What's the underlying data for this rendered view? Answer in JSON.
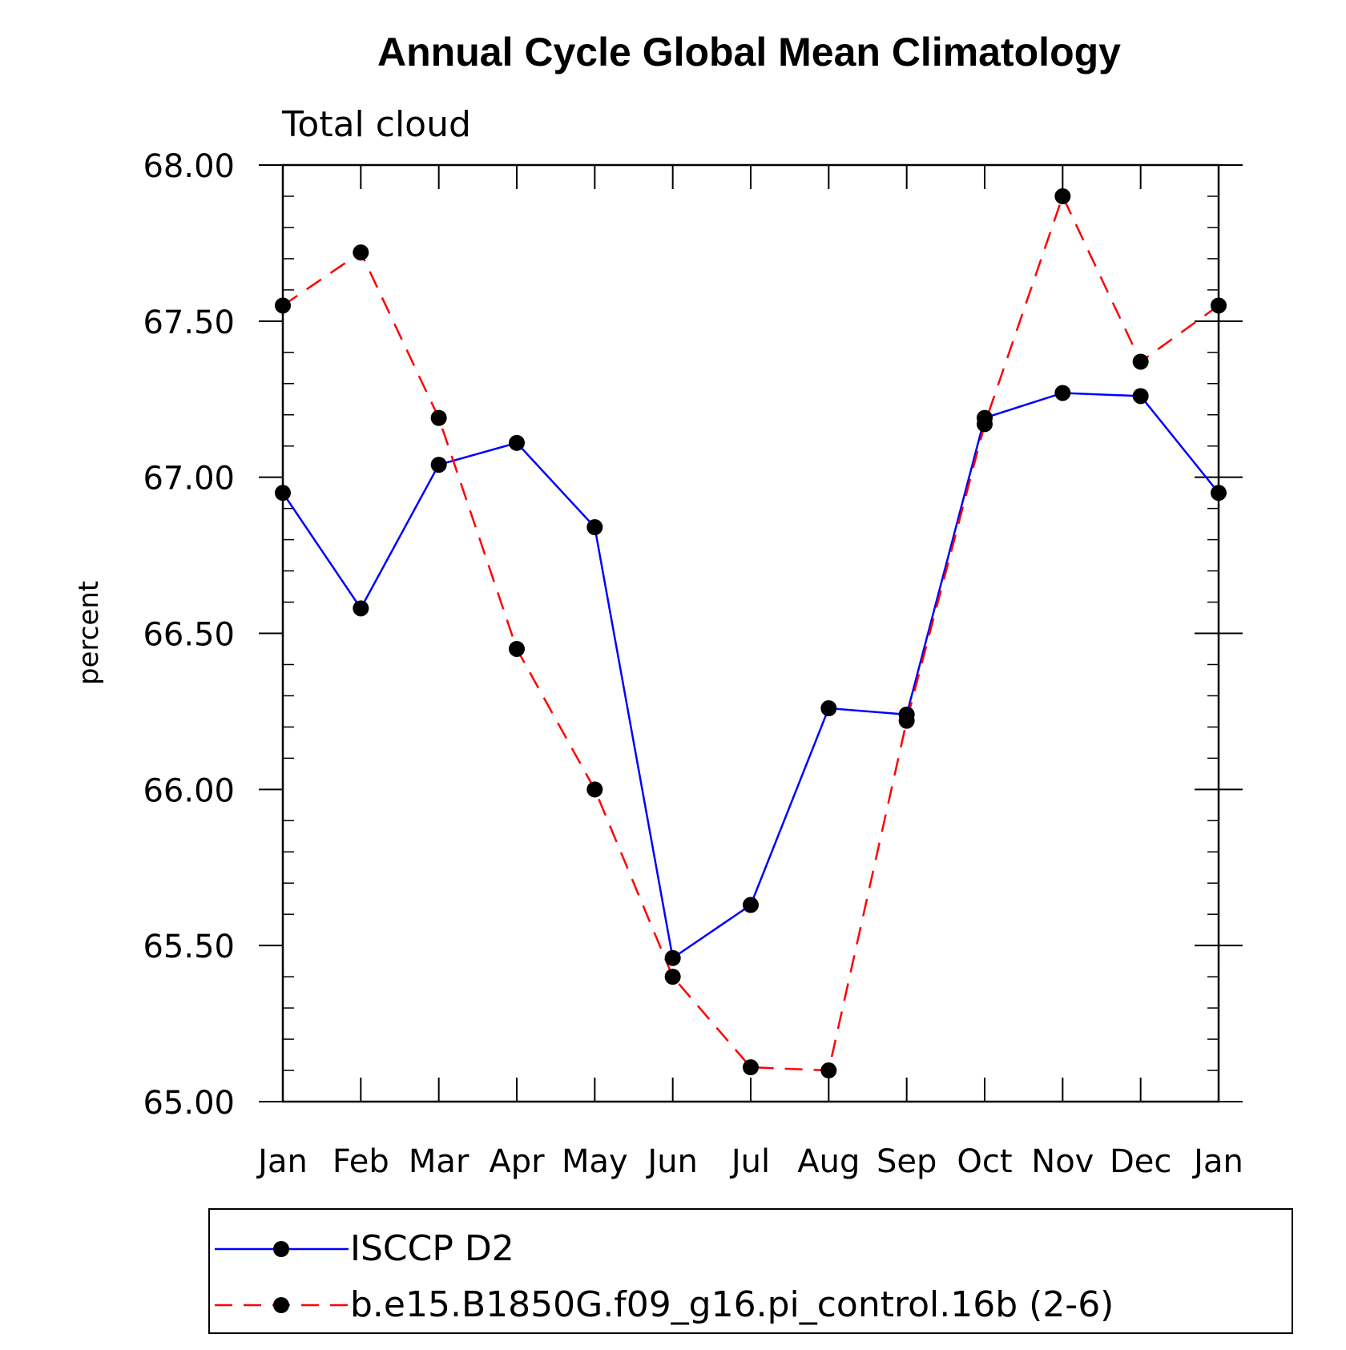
{
  "chart_data": {
    "type": "line",
    "title": "Annual Cycle Global Mean Climatology",
    "subtitle": "Total cloud",
    "xlabel": "",
    "ylabel": "percent",
    "categories": [
      "Jan",
      "Feb",
      "Mar",
      "Apr",
      "May",
      "Jun",
      "Jul",
      "Aug",
      "Sep",
      "Oct",
      "Nov",
      "Dec",
      "Jan"
    ],
    "ylim": [
      65.0,
      68.0
    ],
    "yticks": [
      "65.00",
      "65.50",
      "66.00",
      "66.50",
      "67.00",
      "67.50",
      "68.00"
    ],
    "ytick_values": [
      65.0,
      65.5,
      66.0,
      66.5,
      67.0,
      67.5,
      68.0
    ],
    "grid": false,
    "legend_position": "bottom",
    "series": [
      {
        "name": "ISCCP D2",
        "color": "#0000ff",
        "line_style": "solid",
        "marker": "filled-circle",
        "values": [
          66.95,
          66.58,
          67.04,
          67.11,
          66.84,
          65.46,
          65.63,
          66.26,
          66.24,
          67.19,
          67.27,
          67.26,
          66.95
        ]
      },
      {
        "name": "b.e15.B1850G.f09_g16.pi_control.16b (2-6)",
        "color": "#ff0000",
        "line_style": "dashed",
        "marker": "filled-circle",
        "values": [
          67.55,
          67.72,
          67.19,
          66.45,
          66.0,
          65.4,
          65.11,
          65.1,
          66.22,
          67.17,
          67.9,
          67.37,
          67.55
        ]
      }
    ]
  }
}
